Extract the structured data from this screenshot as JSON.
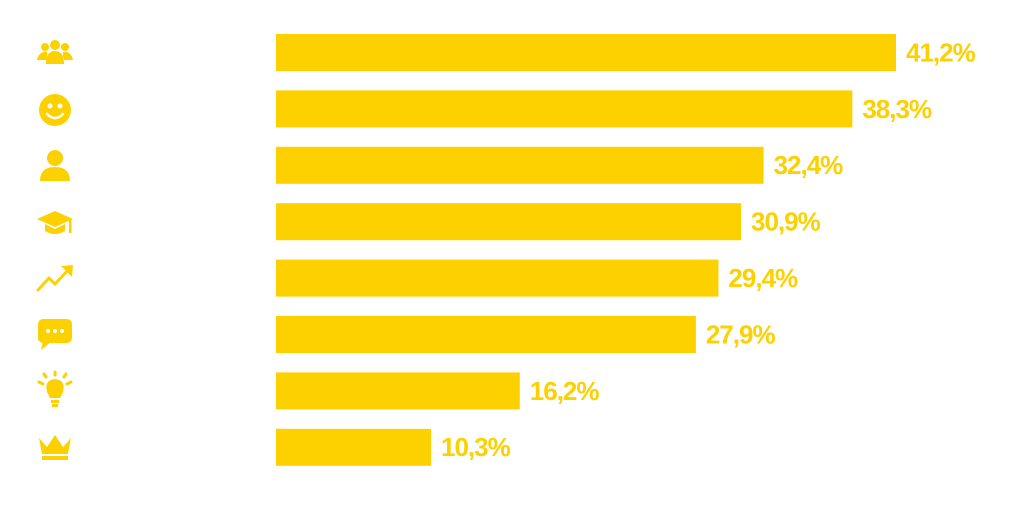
{
  "chart_data": {
    "type": "bar",
    "orientation": "horizontal",
    "categories": [
      null,
      null,
      null,
      null,
      null,
      null,
      null,
      null
    ],
    "values": [
      41.2,
      38.3,
      32.4,
      30.9,
      29.4,
      27.9,
      16.2,
      10.3
    ],
    "value_labels": [
      "41,2%",
      "38,3%",
      "32,4%",
      "30,9%",
      "29,4%",
      "27,9%",
      "16,2%",
      "10,3%"
    ],
    "color": "#FDD000"
  }
}
